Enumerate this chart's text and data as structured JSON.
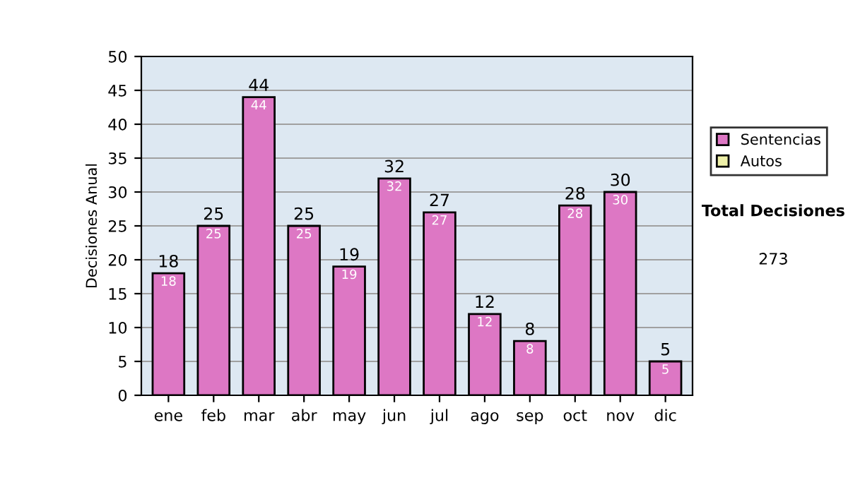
{
  "chart_data": {
    "type": "bar",
    "ylabel": "Decisiones Anual",
    "categories": [
      "ene",
      "feb",
      "mar",
      "abr",
      "may",
      "jun",
      "jul",
      "ago",
      "sep",
      "oct",
      "nov",
      "dic"
    ],
    "series": [
      {
        "name": "Sentencias",
        "color": "#dd77c4",
        "values": [
          18,
          25,
          44,
          25,
          19,
          32,
          27,
          12,
          8,
          28,
          30,
          5
        ]
      },
      {
        "name": "Autos",
        "color": "#eef0a8",
        "values": [
          null,
          null,
          null,
          null,
          null,
          null,
          null,
          null,
          null,
          null,
          null,
          null
        ]
      }
    ],
    "stacked": true,
    "data_labels": true,
    "totals": [
      "18",
      "25",
      "44",
      "25",
      "19",
      "32",
      "27",
      "12",
      "8",
      "28",
      "30",
      "5"
    ],
    "ylim": [
      0,
      50
    ],
    "yticks": [
      0,
      5,
      10,
      15,
      20,
      25,
      30,
      35,
      40,
      45,
      50
    ],
    "grid": "y",
    "legend": "right",
    "annotations": [
      "Total Decisiones",
      "273"
    ]
  }
}
